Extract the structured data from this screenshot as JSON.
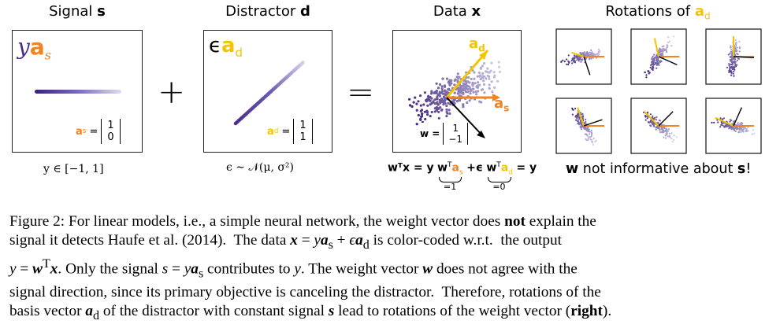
{
  "panels": {
    "signal": {
      "title_prefix": "Signal ",
      "title_var": "s",
      "expr_y": "y",
      "expr_a": "a",
      "expr_sub": "s",
      "vec_label": "a",
      "vec_sub": "s",
      "vec": [
        "1",
        "0"
      ],
      "range": "y ∈ [−1, 1]"
    },
    "plus": "+",
    "distractor": {
      "title_prefix": "Distractor ",
      "title_var": "d",
      "expr_eps": "ϵ",
      "expr_a": "a",
      "expr_sub": "d",
      "vec_label": "a",
      "vec_sub": "d",
      "vec": [
        "1",
        "1"
      ],
      "dist": "ϵ ∼ 𝒩(μ, σ²)"
    },
    "equals": "=",
    "data": {
      "title_prefix": "Data ",
      "title_var": "x",
      "arrow_ad": "a",
      "arrow_ad_sub": "d",
      "arrow_as": "a",
      "arrow_as_sub": "s",
      "w_label": "w =",
      "w_vec": [
        "1",
        "−1"
      ],
      "eq_left": "wᵀx = y",
      "eq_mid": "+ϵ",
      "eq_right": "= y",
      "brace1": "=1",
      "brace2": "=0"
    },
    "rotations": {
      "title_prefix": "Rotations of ",
      "title_var": "a",
      "title_sub": "d",
      "note_w": "w",
      "note_mid": " not informative about ",
      "note_s": "s",
      "note_end": "!"
    }
  },
  "caption": {
    "lines": [
      "Figure 2: For linear models, i.e., a simple neural network, the weight vector does not explain the",
      "signal it detects Haufe et al. (2014).  The data x = ya_s + ϵa_d is color-coded w.r.t. the output",
      "y = wᵀx. Only the signal s = ya_s contributes to y. The weight vector w does not agree with the",
      "signal direction, since its primary objective is canceling the distractor. Therefore, rotations of the",
      "basis vector a_d of the distractor with constant signal s lead to rotations of the weight vector (right)."
    ]
  },
  "colors": {
    "orange": "#f58220",
    "yellow": "#f5c400",
    "purple_dark": "#3b1f7a",
    "purple_light": "#c9c3e6"
  }
}
